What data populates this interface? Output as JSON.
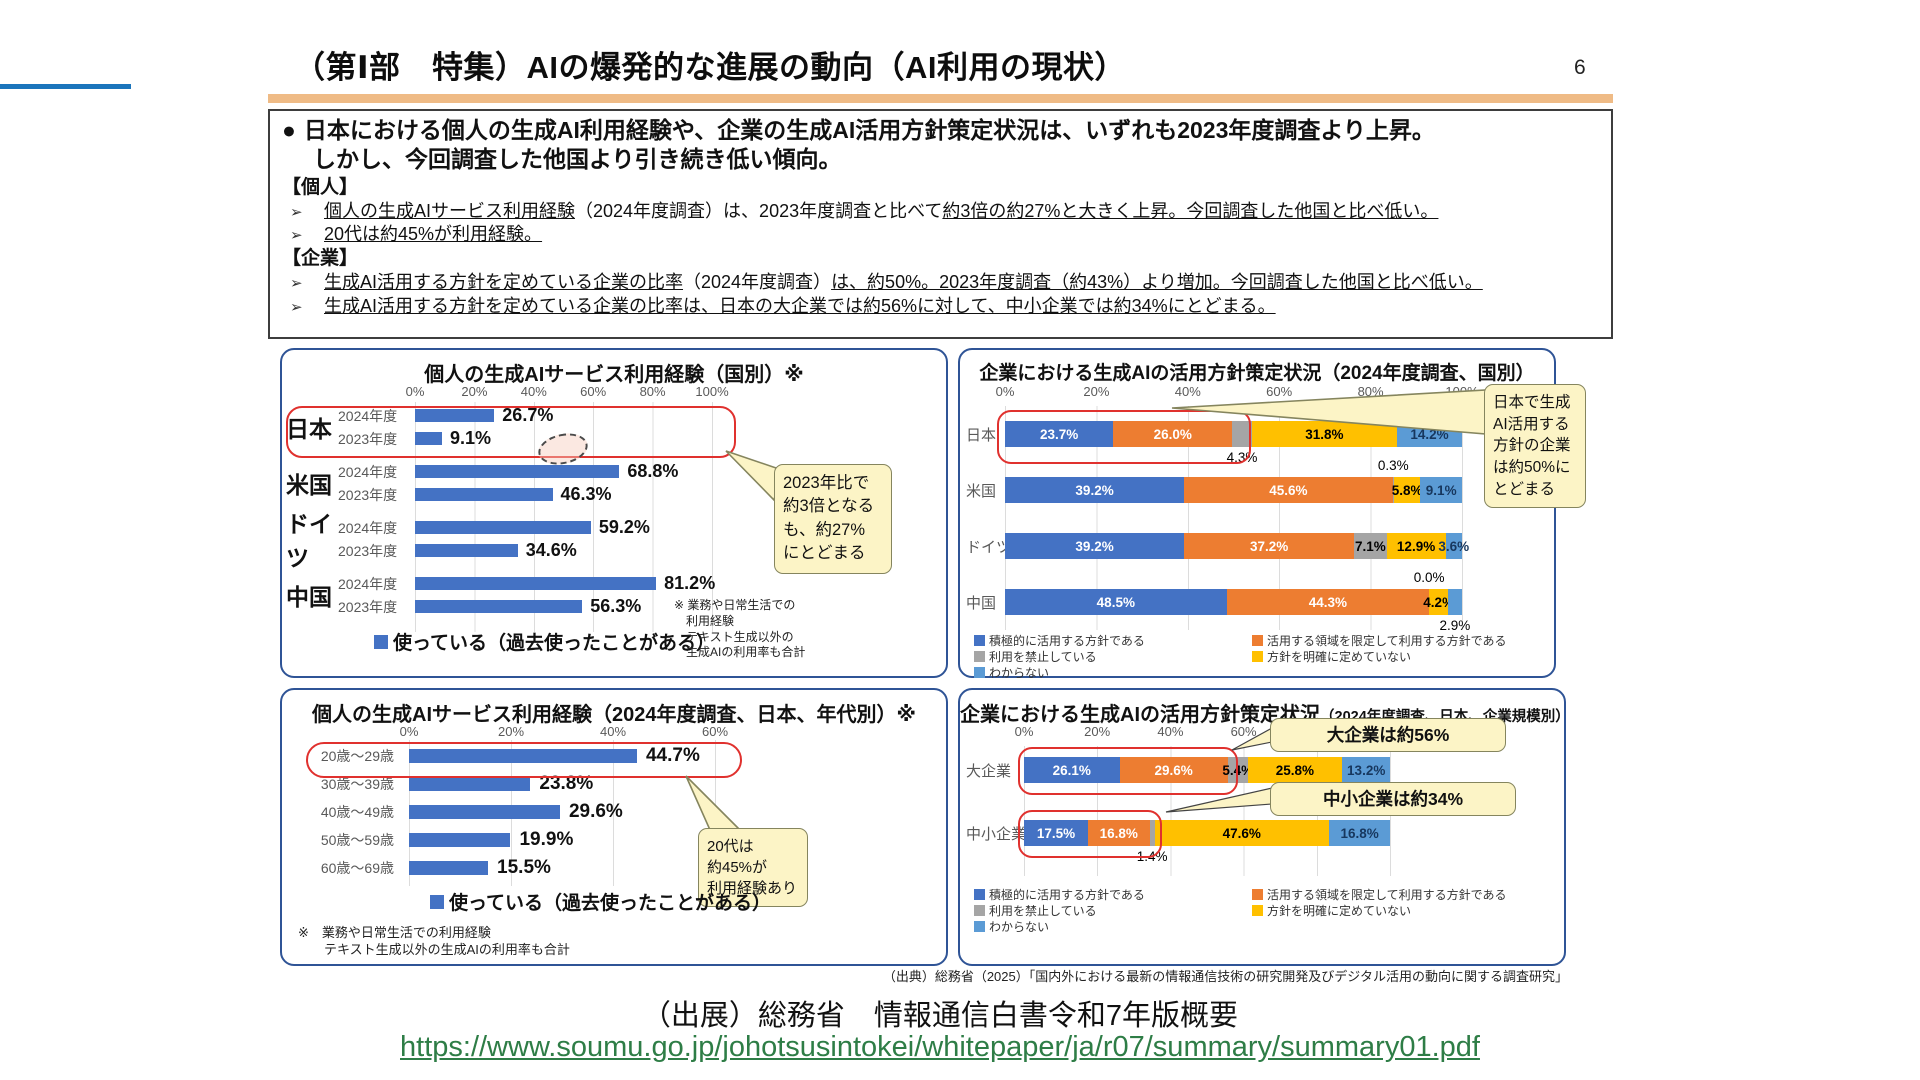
{
  "page": {
    "title": "（第Ⅰ部　特集）AIの爆発的な進展の動向（AI利用の現状）",
    "page_number": "6",
    "summary": {
      "bullet": "●",
      "arrow": "➢",
      "lead_1": "日本における個人の生成AI利用経験や、企業の生成AI活用方針策定状況は、いずれも2023年度調査より上昇。",
      "lead_2": "しかし、今回調査した他国より引き続き低い傾向。",
      "groups": [
        {
          "heading": "【個人】",
          "items": [
            {
              "segments": [
                {
                  "text": "個人の生成AIサービス利用経験",
                  "u": true
                },
                {
                  "text": "（2024年度調査）は、2023年度調査と比べて",
                  "u": false
                },
                {
                  "text": "約3倍の約27%と大きく上昇。今回調査した他国と比べ低い。",
                  "u": true
                }
              ]
            },
            {
              "segments": [
                {
                  "text": "20代は約45%が利用経験。",
                  "u": true
                }
              ]
            }
          ]
        },
        {
          "heading": "【企業】",
          "items": [
            {
              "segments": [
                {
                  "text": "生成AI活用する方針を定めている企業の比率",
                  "u": true
                },
                {
                  "text": "（2024年度調査）",
                  "u": false
                },
                {
                  "text": "は、約50%。2023年度調査（約43%）より増加。今回調査した他国と比べ低い。",
                  "u": true
                }
              ]
            },
            {
              "segments": [
                {
                  "text": "生成AI活用する方針を定めている企業の比率は、日本の大企業では約56%に対して、中小企業では約34%にとどまる。",
                  "u": true
                }
              ]
            }
          ]
        }
      ]
    },
    "source_small": "（出典）総務省（2025）「国内外における最新の情報通信技術の研究開発及びデジタル活用の動向に関する調査研究」",
    "source_big": "（出展）総務省　情報通信白書令和7年版概要",
    "url": "https://www.soumu.go.jp/johotsusintokei/whitepaper/ja/r07/summary/summary01.pdf"
  },
  "colors": {
    "blue": "#4472C4",
    "orange": "#ED7D31",
    "gray": "#A5A5A5",
    "yellow": "#FFC000",
    "lightblue": "#5B9BD5",
    "label_on": {
      "blue": "#FFFFFF",
      "orange": "#FFFFFF",
      "gray": "#000000",
      "yellow": "#000000",
      "lightblue": "#17375E"
    },
    "accent_red": "#E0312E",
    "link_green": "#2E7D46",
    "header_orange": "#EFBB86",
    "header_blue": "#1B75BC"
  },
  "chart_data": [
    {
      "id": "personal-by-country",
      "type": "bar",
      "title": "個人の生成AIサービス利用経験（国別）※",
      "categories": [
        "日本",
        "米国",
        "ドイツ",
        "中国"
      ],
      "series": [
        {
          "name": "2024年度",
          "values": [
            26.7,
            68.8,
            59.2,
            81.2
          ]
        },
        {
          "name": "2023年度",
          "values": [
            9.1,
            46.3,
            34.6,
            56.3
          ]
        }
      ],
      "xlim": [
        0,
        100
      ],
      "ticks": [
        "0%",
        "20%",
        "40%",
        "60%",
        "80%",
        "100%"
      ],
      "grid": true,
      "legend_label": "使っている（過去使ったことがある）",
      "note": "※ 業務や日常生活での\n　利用経験\n　テキスト生成以外の\n　生成AIの利用率も合計",
      "callout": "2023年比で\n約3倍となる\nも、約27%\nにとどまる",
      "highlight": "日本の2024年度・2023年度の行を赤枠で強調"
    },
    {
      "id": "company-by-country",
      "type": "stacked-bar",
      "title": "企業における生成AIの活用方針策定状況（2024年度調査、国別）",
      "categories": [
        "日本",
        "米国",
        "ドイツ",
        "中国"
      ],
      "series": [
        {
          "name": "積極的に活用する方針である",
          "color": "blue",
          "values": [
            23.7,
            39.2,
            39.2,
            48.5
          ]
        },
        {
          "name": "活用する領域を限定して利用する方針である",
          "color": "orange",
          "values": [
            26.0,
            45.6,
            37.2,
            44.3
          ]
        },
        {
          "name": "利用を禁止している",
          "color": "gray",
          "values": [
            4.3,
            0.3,
            7.1,
            0.0
          ]
        },
        {
          "name": "方針を明確に定めていない",
          "color": "yellow",
          "values": [
            31.8,
            5.8,
            12.9,
            4.2
          ]
        },
        {
          "name": "わからない",
          "color": "lightblue",
          "values": [
            14.2,
            9.1,
            3.6,
            2.9
          ]
        }
      ],
      "label_pos": [
        [
          "in",
          "in",
          "below",
          "in",
          "in"
        ],
        [
          "in",
          "in",
          "above",
          "in",
          "in"
        ],
        [
          "in",
          "in",
          "in",
          "in",
          "in"
        ],
        [
          "in",
          "in",
          "above",
          "in",
          "below"
        ]
      ],
      "xlim": [
        0,
        100
      ],
      "ticks": [
        "0%",
        "20%",
        "40%",
        "60%",
        "80%",
        "100%"
      ],
      "grid": true,
      "callout": "日本で生成\nAI活用する\n方針の企業\nは約50%に\nとどまる",
      "highlight": "日本の青・オレンジ区分を赤枠で強調"
    },
    {
      "id": "personal-by-age",
      "type": "bar",
      "title": "個人の生成AIサービス利用経験（2024年度調査、日本、年代別）※",
      "categories": [
        "20歳～29歳",
        "30歳～39歳",
        "40歳～49歳",
        "50歳～59歳",
        "60歳～69歳"
      ],
      "series": [
        {
          "name": "使っている（過去使ったことがある）",
          "values": [
            44.7,
            23.8,
            29.6,
            19.9,
            15.5
          ]
        }
      ],
      "xlim": [
        0,
        60
      ],
      "ticks": [
        "0%",
        "20%",
        "40%",
        "60%"
      ],
      "grid": true,
      "legend_label": "使っている（過去使ったことがある）",
      "note": "※　業務や日常生活での利用経験\n　　テキスト生成以外の生成AIの利用率も合計",
      "callout": "20代は\n約45%が\n利用経験あり",
      "highlight": "20歳～29歳の行を赤枠で強調"
    },
    {
      "id": "company-by-size",
      "type": "stacked-bar",
      "title": "企業における生成AIの活用方針策定状況",
      "title_sub": "（2024年度調査、日本、企業規模別）",
      "categories": [
        "大企業",
        "中小企業"
      ],
      "series": [
        {
          "name": "積極的に活用する方針である",
          "color": "blue",
          "values": [
            26.1,
            17.5
          ]
        },
        {
          "name": "活用する領域を限定して利用する方針である",
          "color": "orange",
          "values": [
            29.6,
            16.8
          ]
        },
        {
          "name": "利用を禁止している",
          "color": "gray",
          "values": [
            5.4,
            1.4
          ]
        },
        {
          "name": "方針を明確に定めていない",
          "color": "yellow",
          "values": [
            25.8,
            47.6
          ]
        },
        {
          "name": "わからない",
          "color": "lightblue",
          "values": [
            13.2,
            16.8
          ]
        }
      ],
      "label_pos": [
        [
          "in",
          "in",
          "in",
          "in",
          "in"
        ],
        [
          "in",
          "in",
          "below",
          "in",
          "in"
        ]
      ],
      "xlim": [
        0,
        100
      ],
      "ticks": [
        "0%",
        "20%",
        "40%",
        "60%",
        "80%",
        "100%"
      ],
      "grid": true,
      "callout_large": "大企業は約56%",
      "callout_small": "中小企業は約34%",
      "highlight": "大企業・中小企業の青・オレンジ区分を赤枠で強調"
    }
  ]
}
